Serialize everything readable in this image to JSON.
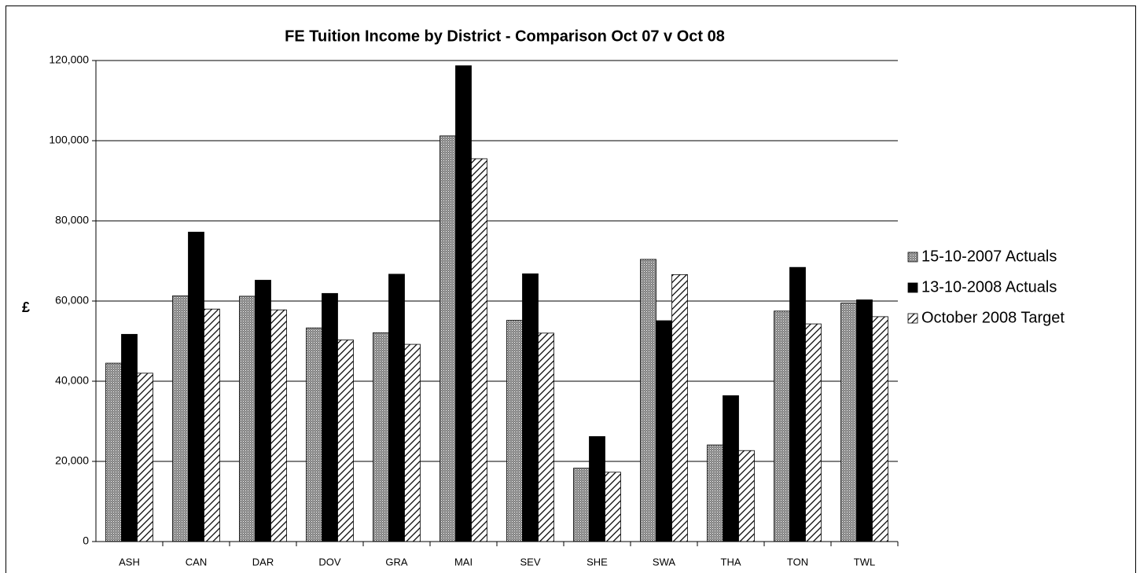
{
  "chart_data": {
    "type": "bar",
    "title": "FE Tuition Income by District - Comparison Oct 07 v Oct 08",
    "y_label": "£",
    "categories": [
      "ASH",
      "CAN",
      "DAR",
      "DOV",
      "GRA",
      "MAI",
      "SEV",
      "SHE",
      "SWA",
      "THA",
      "TON",
      "TWL"
    ],
    "series": [
      {
        "name": "15-10-2007 Actuals",
        "color": "#808080",
        "pattern": "dots",
        "values": [
          44500,
          61300,
          61200,
          53300,
          52100,
          101200,
          55200,
          18300,
          70400,
          24100,
          57500,
          59500
        ]
      },
      {
        "name": "13-10-2008 Actuals",
        "color": "#000000",
        "pattern": "solid",
        "values": [
          51700,
          77200,
          65200,
          61900,
          66700,
          118700,
          66800,
          26200,
          55100,
          36400,
          68400,
          60300
        ]
      },
      {
        "name": "October 2008 Target",
        "color": "#000000",
        "pattern": "hatch",
        "values": [
          42000,
          58000,
          57800,
          50300,
          49200,
          95500,
          52000,
          17300,
          66600,
          22700,
          54300,
          56100
        ]
      }
    ],
    "ylim": [
      0,
      120000
    ],
    "yticks": [
      0,
      {
        "value": 20000,
        "label": "20,000"
      },
      {
        "value": 40000,
        "label": "40,000"
      },
      {
        "value": 60000,
        "label": "60,000"
      },
      {
        "value": 80000,
        "label": "80,000"
      },
      {
        "value": 100000,
        "label": "100,000"
      },
      {
        "value": 120000,
        "label": "120,000"
      }
    ],
    "grid": true,
    "legend": "right"
  }
}
